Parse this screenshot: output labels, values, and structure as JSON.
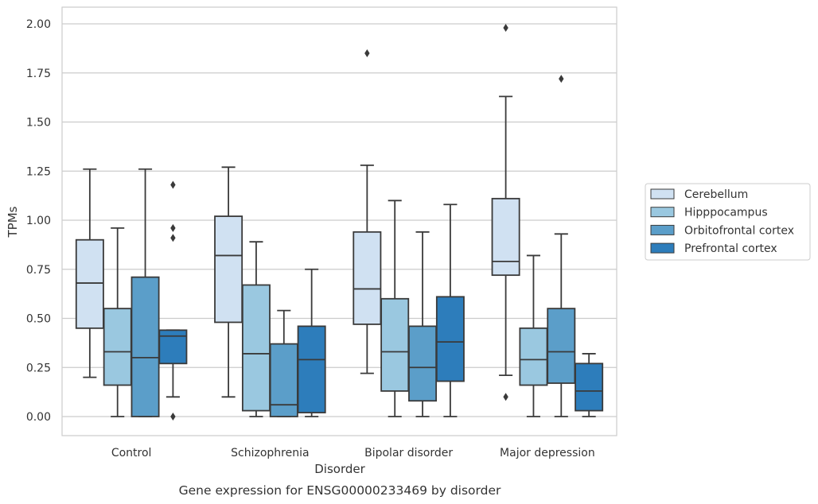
{
  "chart_data": {
    "type": "box",
    "title": "Gene expression for ENSG00000233469 by disorder",
    "xlabel": "Disorder",
    "ylabel": "TPMs",
    "ylim": [
      -0.1,
      2.08
    ],
    "yticks": [
      "0.00",
      "0.25",
      "0.50",
      "0.75",
      "1.00",
      "1.25",
      "1.50",
      "1.75",
      "2.00"
    ],
    "grid": "horizontal",
    "legend_position": "right",
    "categories": [
      "Control",
      "Schizophrenia",
      "Bipolar disorder",
      "Major depression"
    ],
    "series": [
      {
        "name": "Cerebellum",
        "color": "#d0e1f2",
        "boxes": [
          {
            "whislo": 0.2,
            "q1": 0.45,
            "med": 0.68,
            "q3": 0.9,
            "whishi": 1.26,
            "fliers": []
          },
          {
            "whislo": 0.1,
            "q1": 0.48,
            "med": 0.82,
            "q3": 1.02,
            "whishi": 1.27,
            "fliers": []
          },
          {
            "whislo": 0.22,
            "q1": 0.47,
            "med": 0.65,
            "q3": 0.94,
            "whishi": 1.28,
            "fliers": [
              1.85
            ]
          },
          {
            "whislo": 0.21,
            "q1": 0.72,
            "med": 0.79,
            "q3": 1.11,
            "whishi": 1.63,
            "fliers": [
              0.1,
              1.98
            ]
          }
        ]
      },
      {
        "name": "Hipppocampus",
        "color": "#9ac8e0",
        "boxes": [
          {
            "whislo": 0.0,
            "q1": 0.16,
            "med": 0.33,
            "q3": 0.55,
            "whishi": 0.96,
            "fliers": []
          },
          {
            "whislo": 0.0,
            "q1": 0.03,
            "med": 0.32,
            "q3": 0.67,
            "whishi": 0.89,
            "fliers": []
          },
          {
            "whislo": 0.0,
            "q1": 0.13,
            "med": 0.33,
            "q3": 0.6,
            "whishi": 1.1,
            "fliers": []
          },
          {
            "whislo": 0.0,
            "q1": 0.16,
            "med": 0.29,
            "q3": 0.45,
            "whishi": 0.82,
            "fliers": []
          }
        ]
      },
      {
        "name": "Orbitofrontal cortex",
        "color": "#5b9ec9",
        "boxes": [
          {
            "whislo": 0.0,
            "q1": 0.0,
            "med": 0.3,
            "q3": 0.71,
            "whishi": 1.26,
            "fliers": []
          },
          {
            "whislo": 0.0,
            "q1": 0.0,
            "med": 0.06,
            "q3": 0.37,
            "whishi": 0.54,
            "fliers": []
          },
          {
            "whislo": 0.0,
            "q1": 0.08,
            "med": 0.25,
            "q3": 0.46,
            "whishi": 0.94,
            "fliers": []
          },
          {
            "whislo": 0.0,
            "q1": 0.17,
            "med": 0.33,
            "q3": 0.55,
            "whishi": 0.93,
            "fliers": [
              1.72
            ]
          }
        ]
      },
      {
        "name": "Prefrontal cortex",
        "color": "#2d7dbb",
        "boxes": [
          {
            "whislo": 0.1,
            "q1": 0.27,
            "med": 0.41,
            "q3": 0.44,
            "whishi": 0.44,
            "fliers": [
              0.0,
              0.91,
              0.96,
              1.18
            ]
          },
          {
            "whislo": 0.0,
            "q1": 0.02,
            "med": 0.29,
            "q3": 0.46,
            "whishi": 0.75,
            "fliers": []
          },
          {
            "whislo": 0.0,
            "q1": 0.18,
            "med": 0.38,
            "q3": 0.61,
            "whishi": 1.08,
            "fliers": []
          },
          {
            "whislo": 0.0,
            "q1": 0.03,
            "med": 0.13,
            "q3": 0.27,
            "whishi": 0.32,
            "fliers": []
          }
        ]
      }
    ]
  }
}
